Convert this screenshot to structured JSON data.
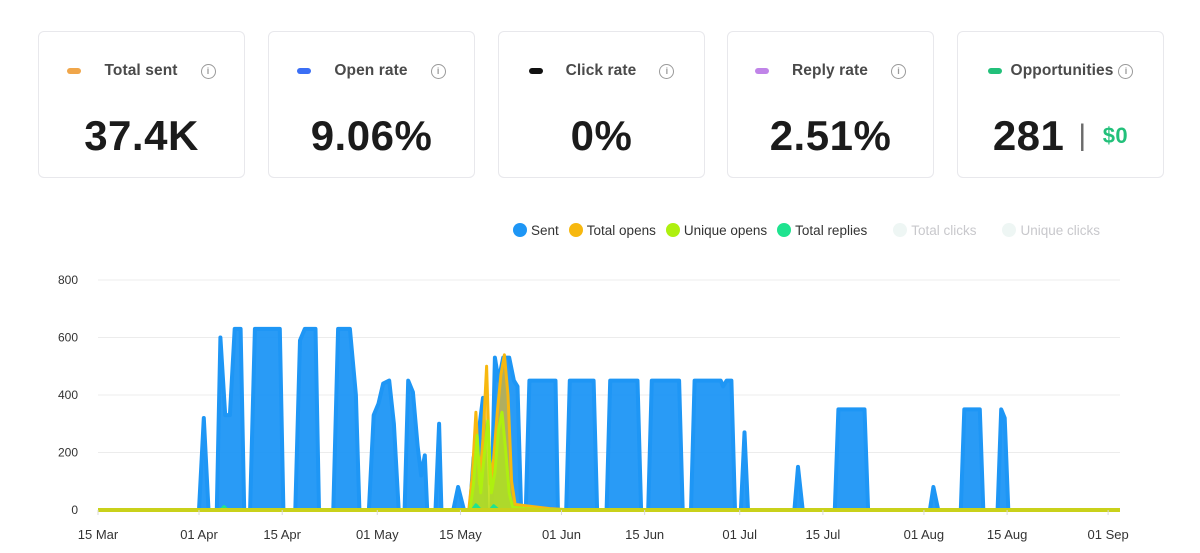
{
  "stats": [
    {
      "label": "Total sent",
      "value": "37.4K",
      "color": "#f0a64a",
      "icon": "info-icon"
    },
    {
      "label": "Open rate",
      "value": "9.06%",
      "color": "#3b6ff5",
      "icon": "info-icon"
    },
    {
      "label": "Click rate",
      "value": "0%",
      "color": "#111111",
      "icon": "info-icon"
    },
    {
      "label": "Reply rate",
      "value": "2.51%",
      "color": "#c084e8",
      "icon": "info-icon"
    },
    {
      "label": "Opportunities",
      "value": "281",
      "extra_separator": "|",
      "extra_value": "$0",
      "color": "#22c07a",
      "icon": "info-icon"
    }
  ],
  "legend": [
    {
      "name": "Sent",
      "color": "#1e96f5",
      "active": true
    },
    {
      "name": "Total opens",
      "color": "#f7b80f",
      "active": true
    },
    {
      "name": "Unique opens",
      "color": "#aef00f",
      "active": true
    },
    {
      "name": "Total replies",
      "color": "#1ee38f",
      "active": true
    },
    {
      "name": "Total clicks",
      "color": "#eef6f4",
      "active": false
    },
    {
      "name": "Unique clicks",
      "color": "#eef6f4",
      "active": false
    }
  ],
  "chart_data": {
    "type": "area",
    "x_start": "2024-03-15",
    "x_end": "2024-09-15",
    "ylim": [
      0,
      800
    ],
    "y_ticks": [
      0,
      200,
      400,
      600,
      800
    ],
    "x_ticks": [
      {
        "label": "15 Mar",
        "day": 0
      },
      {
        "label": "01 Apr",
        "day": 17
      },
      {
        "label": "15 Apr",
        "day": 31
      },
      {
        "label": "01 May",
        "day": 47
      },
      {
        "label": "15 May",
        "day": 61
      },
      {
        "label": "01 Jun",
        "day": 78
      },
      {
        "label": "15 Jun",
        "day": 92
      },
      {
        "label": "01 Jul",
        "day": 108
      },
      {
        "label": "15 Jul",
        "day": 122
      },
      {
        "label": "01 Aug",
        "day": 139
      },
      {
        "label": "15 Aug",
        "day": 153
      },
      {
        "label": "01 Sep",
        "day": 170
      }
    ],
    "series": [
      {
        "name": "Sent",
        "color": "#1e96f5",
        "values": [
          [
            0,
            0
          ],
          [
            17,
            0
          ],
          [
            17.8,
            320
          ],
          [
            18.6,
            0
          ],
          [
            20,
            0
          ],
          [
            20.6,
            600
          ],
          [
            21.4,
            330
          ],
          [
            22.2,
            330
          ],
          [
            23,
            630
          ],
          [
            24,
            630
          ],
          [
            24.6,
            0
          ],
          [
            25.6,
            0
          ],
          [
            26.4,
            630
          ],
          [
            30.6,
            630
          ],
          [
            31.2,
            0
          ],
          [
            33.2,
            0
          ],
          [
            34,
            590
          ],
          [
            34.8,
            630
          ],
          [
            36.6,
            630
          ],
          [
            37.2,
            0
          ],
          [
            39.6,
            0
          ],
          [
            40.4,
            630
          ],
          [
            42.4,
            630
          ],
          [
            43.4,
            400
          ],
          [
            44,
            0
          ],
          [
            45.6,
            0
          ],
          [
            46.4,
            330
          ],
          [
            47.2,
            370
          ],
          [
            48,
            440
          ],
          [
            49,
            450
          ],
          [
            49.8,
            300
          ],
          [
            50.6,
            0
          ],
          [
            51.6,
            0
          ],
          [
            52.2,
            450
          ],
          [
            53,
            410
          ],
          [
            53.8,
            220
          ],
          [
            54.4,
            120
          ],
          [
            55,
            190
          ],
          [
            55.4,
            0
          ],
          [
            56.8,
            0
          ],
          [
            57.4,
            300
          ],
          [
            57.8,
            0
          ],
          [
            59.8,
            0
          ],
          [
            60.6,
            80
          ],
          [
            61.6,
            0
          ],
          [
            62.6,
            0
          ],
          [
            63.2,
            180
          ],
          [
            64,
            260
          ],
          [
            64.8,
            390
          ],
          [
            65.4,
            0
          ],
          [
            66.2,
            0
          ],
          [
            66.8,
            530
          ],
          [
            67.4,
            450
          ],
          [
            68.2,
            530
          ],
          [
            69.2,
            530
          ],
          [
            70,
            450
          ],
          [
            70.6,
            430
          ],
          [
            71.2,
            0
          ],
          [
            72,
            0
          ],
          [
            72.6,
            450
          ],
          [
            77,
            450
          ],
          [
            77.4,
            0
          ],
          [
            78.8,
            0
          ],
          [
            79.4,
            450
          ],
          [
            83.4,
            450
          ],
          [
            84,
            0
          ],
          [
            85.6,
            0
          ],
          [
            86.2,
            450
          ],
          [
            90.8,
            450
          ],
          [
            91.4,
            0
          ],
          [
            92.6,
            0
          ],
          [
            93.2,
            450
          ],
          [
            97.8,
            450
          ],
          [
            98.4,
            0
          ],
          [
            99.8,
            0
          ],
          [
            100.4,
            450
          ],
          [
            104.2,
            450
          ],
          [
            104.8,
            450
          ],
          [
            105.2,
            430
          ],
          [
            105.8,
            450
          ],
          [
            106.6,
            450
          ],
          [
            107.2,
            0
          ],
          [
            108.2,
            0
          ],
          [
            108.8,
            270
          ],
          [
            109.4,
            0
          ],
          [
            117.2,
            0
          ],
          [
            117.8,
            150
          ],
          [
            118.6,
            0
          ],
          [
            124,
            0
          ],
          [
            124.6,
            350
          ],
          [
            129,
            350
          ],
          [
            129.6,
            0
          ],
          [
            140,
            0
          ],
          [
            140.6,
            80
          ],
          [
            141.4,
            0
          ],
          [
            145.2,
            0
          ],
          [
            145.8,
            350
          ],
          [
            148.4,
            350
          ],
          [
            149,
            0
          ],
          [
            151.4,
            0
          ],
          [
            152,
            350
          ],
          [
            152.6,
            320
          ],
          [
            153.2,
            0
          ],
          [
            172,
            0
          ]
        ]
      },
      {
        "name": "Total opens",
        "color": "#f7b80f",
        "values": [
          [
            0,
            0
          ],
          [
            62.4,
            0
          ],
          [
            63,
            120
          ],
          [
            63.6,
            340
          ],
          [
            64.2,
            90
          ],
          [
            64.8,
            250
          ],
          [
            65.4,
            500
          ],
          [
            66,
            90
          ],
          [
            66.6,
            180
          ],
          [
            67.2,
            340
          ],
          [
            67.8,
            470
          ],
          [
            68.4,
            540
          ],
          [
            69,
            400
          ],
          [
            69.6,
            100
          ],
          [
            70.2,
            20
          ],
          [
            72,
            15
          ],
          [
            76,
            5
          ],
          [
            80,
            0
          ],
          [
            172,
            0
          ]
        ]
      },
      {
        "name": "Unique opens",
        "color": "#aef00f",
        "values": [
          [
            0,
            0
          ],
          [
            62.6,
            0
          ],
          [
            63.2,
            90
          ],
          [
            63.8,
            260
          ],
          [
            64.4,
            60
          ],
          [
            65,
            190
          ],
          [
            65.6,
            310
          ],
          [
            66.2,
            60
          ],
          [
            66.8,
            130
          ],
          [
            67.4,
            280
          ],
          [
            68,
            340
          ],
          [
            68.6,
            210
          ],
          [
            69.2,
            60
          ],
          [
            69.8,
            10
          ],
          [
            72,
            5
          ],
          [
            76,
            0
          ],
          [
            172,
            0
          ]
        ]
      },
      {
        "name": "Total replies",
        "color": "#1ee38f",
        "values": [
          [
            0,
            0
          ],
          [
            20.6,
            0
          ],
          [
            21.2,
            12
          ],
          [
            21.8,
            0
          ],
          [
            63,
            0
          ],
          [
            63.6,
            18
          ],
          [
            64.4,
            0
          ],
          [
            66,
            0
          ],
          [
            66.6,
            15
          ],
          [
            67.4,
            0
          ],
          [
            172,
            0
          ]
        ]
      }
    ]
  }
}
